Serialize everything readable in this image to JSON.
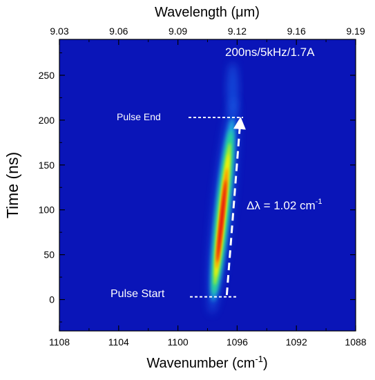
{
  "chart_data": {
    "type": "heatmap",
    "title": "",
    "annotation_top_right": "200ns/5kHz/1.7A",
    "xlabel": {
      "main": "Wavenumber (cm",
      "sup": "-1",
      "tail": ")"
    },
    "x2label": {
      "main": "Wavelength (",
      "mu": "μ",
      "tail": "m)"
    },
    "ylabel": "Time (ns)",
    "xlim": [
      1108,
      1088
    ],
    "ylim": [
      -35,
      290
    ],
    "x_ticks": [
      1108,
      1104,
      1100,
      1096,
      1092,
      1088
    ],
    "x_tick_labels": [
      "1108",
      "1104",
      "1100",
      "1096",
      "1092",
      "1088"
    ],
    "y_ticks": [
      0,
      50,
      100,
      150,
      200,
      250
    ],
    "y_tick_labels": [
      "0",
      "50",
      "100",
      "150",
      "200",
      "250"
    ],
    "x2_tick_labels": [
      "9.03",
      "9.06",
      "9.09",
      "9.12",
      "9.16",
      "9.19"
    ],
    "pulse_start_label": "Pulse Start",
    "pulse_end_label": "Pulse End",
    "delta_label": {
      "main": "Δλ = 1.02 cm",
      "sup": "-1"
    },
    "pulse_start_time": 3,
    "pulse_end_time": 203,
    "ridge": [
      {
        "t": 10,
        "x": 1097.55
      },
      {
        "t": 50,
        "x": 1097.3
      },
      {
        "t": 100,
        "x": 1096.95
      },
      {
        "t": 150,
        "x": 1096.65
      },
      {
        "t": 190,
        "x": 1096.4
      }
    ],
    "arrow": {
      "from": [
        1096.7,
        5
      ],
      "to": [
        1095.8,
        203
      ]
    },
    "colors": {
      "background": "#0a15b8",
      "scale": [
        "#0a15b8",
        "#1c6cf0",
        "#22c8e0",
        "#2fe07a",
        "#b8f020",
        "#ffee00",
        "#ff6a00",
        "#e00010"
      ]
    }
  }
}
